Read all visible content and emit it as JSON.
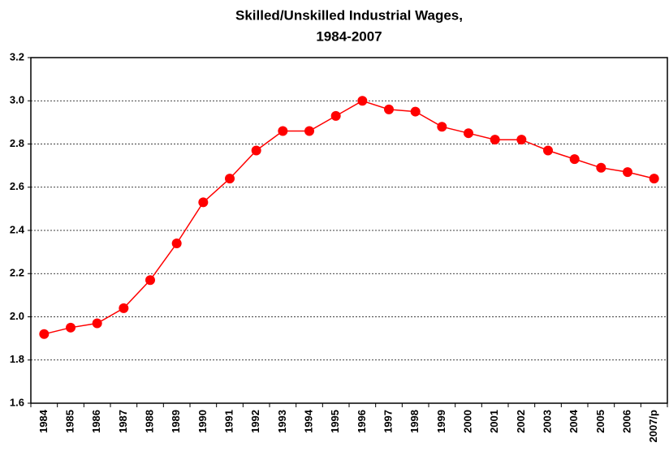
{
  "chart_data": {
    "type": "line",
    "title": "Skilled/Unskilled Industrial Wages,",
    "subtitle": "1984-2007",
    "categories": [
      "1984",
      "1985",
      "1986",
      "1987",
      "1988",
      "1989",
      "1990",
      "1991",
      "1992",
      "1993",
      "1994",
      "1995",
      "1996",
      "1997",
      "1998",
      "1999",
      "2000",
      "2001",
      "2002",
      "2003",
      "2004",
      "2005",
      "2006",
      "2007/p"
    ],
    "values": [
      1.92,
      1.95,
      1.97,
      2.04,
      2.17,
      2.34,
      2.53,
      2.64,
      2.77,
      2.86,
      2.86,
      2.93,
      3.0,
      2.96,
      2.95,
      2.88,
      2.85,
      2.82,
      2.82,
      2.77,
      2.73,
      2.69,
      2.67,
      2.64
    ],
    "color": "#ff0000",
    "ylim": [
      1.6,
      3.2
    ],
    "yticks": [
      1.6,
      1.8,
      {
        "value": 2,
        "label": "2.0"
      },
      2.2,
      2.4,
      2.6,
      2.8,
      {
        "value": 3,
        "label": "3.0"
      },
      3.2
    ],
    "grid": true
  }
}
